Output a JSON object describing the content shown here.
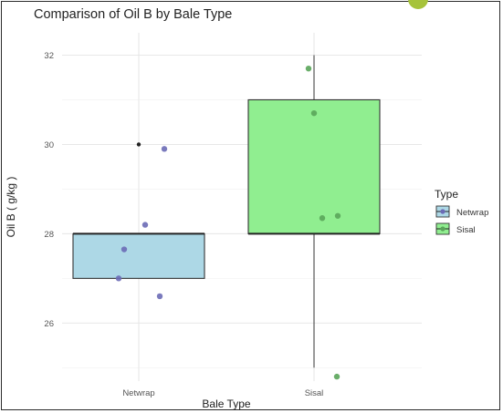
{
  "chart_data": {
    "type": "boxplot",
    "title": "Comparison of Oil B by Bale Type",
    "xlabel": "Bale Type",
    "ylabel": "Oil B ( g/kg )",
    "categories": [
      "Netwrap",
      "Sisal"
    ],
    "ylim": [
      24.7,
      32.5
    ],
    "yticks": [
      26,
      28,
      30,
      32
    ],
    "grid": true,
    "legend": {
      "title": "Type",
      "position": "right",
      "entries": [
        "Netwrap",
        "Sisal"
      ]
    },
    "boxes": [
      {
        "category": "Netwrap",
        "q1": 27,
        "median": 28,
        "q3": 28,
        "whisker_low": 27,
        "whisker_high": 28,
        "outliers": [
          30
        ],
        "fill": "#add8e6"
      },
      {
        "category": "Sisal",
        "q1": 28,
        "median": 28,
        "q3": 31,
        "whisker_low": 25,
        "whisker_high": 32,
        "outliers": [],
        "fill": "#90ee90"
      }
    ],
    "points": [
      {
        "category": "Netwrap",
        "values": [
          29.9,
          28.2,
          27.65,
          27.0,
          26.6
        ],
        "color": "#6b6bb6"
      },
      {
        "category": "Sisal",
        "values": [
          31.7,
          30.7,
          28.35,
          28.4,
          24.8
        ],
        "color": "#5aa55a"
      }
    ]
  }
}
